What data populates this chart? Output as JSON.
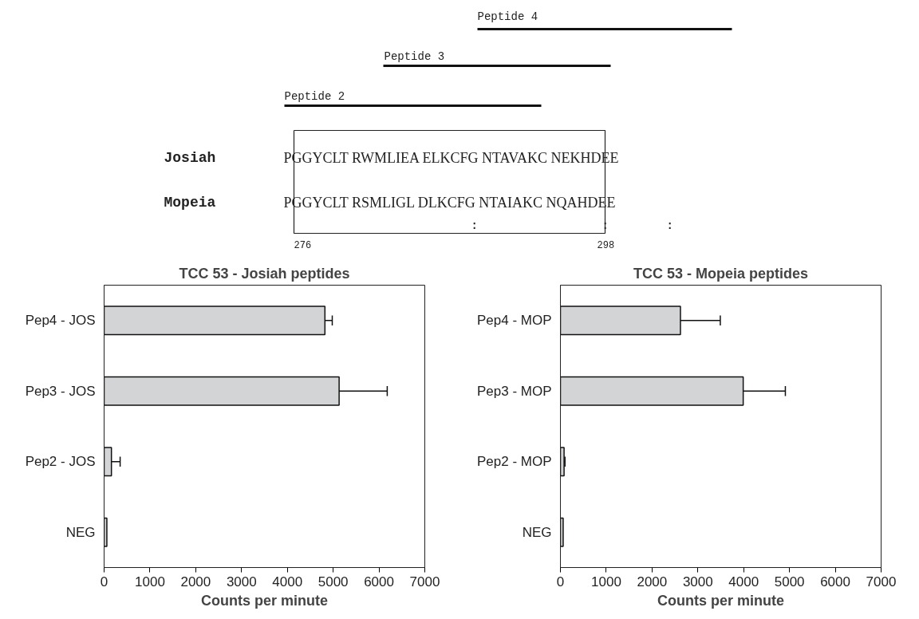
{
  "chart_data": [
    {
      "type": "other",
      "annotations": [
        "Peptide 4",
        "Peptide 3",
        "Peptide 2",
        "Josiah",
        "PGGYCLT RWMLIEA ELKCFG NTAVAKC NEKHDEE",
        "Mopeia",
        "PGGYCLT RSMLIGL DLKCFG NTAIAKC NQAHDEE",
        ":",
        ":",
        ":",
        "276",
        "298"
      ]
    },
    {
      "type": "bar",
      "orientation": "horizontal",
      "title": "TCC 53 - Josiah peptides",
      "xlabel": "Counts per minute",
      "categories": [
        "Pep4 - JOS",
        "Pep3 - JOS",
        "Pep2 - JOS",
        "NEG"
      ],
      "values": [
        4820,
        5130,
        160,
        60
      ],
      "errors": [
        160,
        1050,
        190,
        null
      ],
      "color": "#d3d4d5",
      "xlim": [
        0,
        7000
      ],
      "xticks": [
        0,
        1000,
        2000,
        3000,
        4000,
        5000,
        6000,
        7000
      ],
      "grid": false
    },
    {
      "type": "bar",
      "orientation": "horizontal",
      "title": "TCC 53 - Mopeia peptides",
      "xlabel": "Counts per minute",
      "categories": [
        "Pep4 - MOP",
        "Pep3 - MOP",
        "Pep2 - MOP",
        "NEG"
      ],
      "values": [
        2620,
        3990,
        80,
        60
      ],
      "errors": [
        870,
        920,
        20,
        null
      ],
      "color": "#d3d4d5",
      "xlim": [
        0,
        7000
      ],
      "xticks": [
        0,
        1000,
        2000,
        3000,
        4000,
        5000,
        6000,
        7000
      ],
      "grid": false
    }
  ]
}
